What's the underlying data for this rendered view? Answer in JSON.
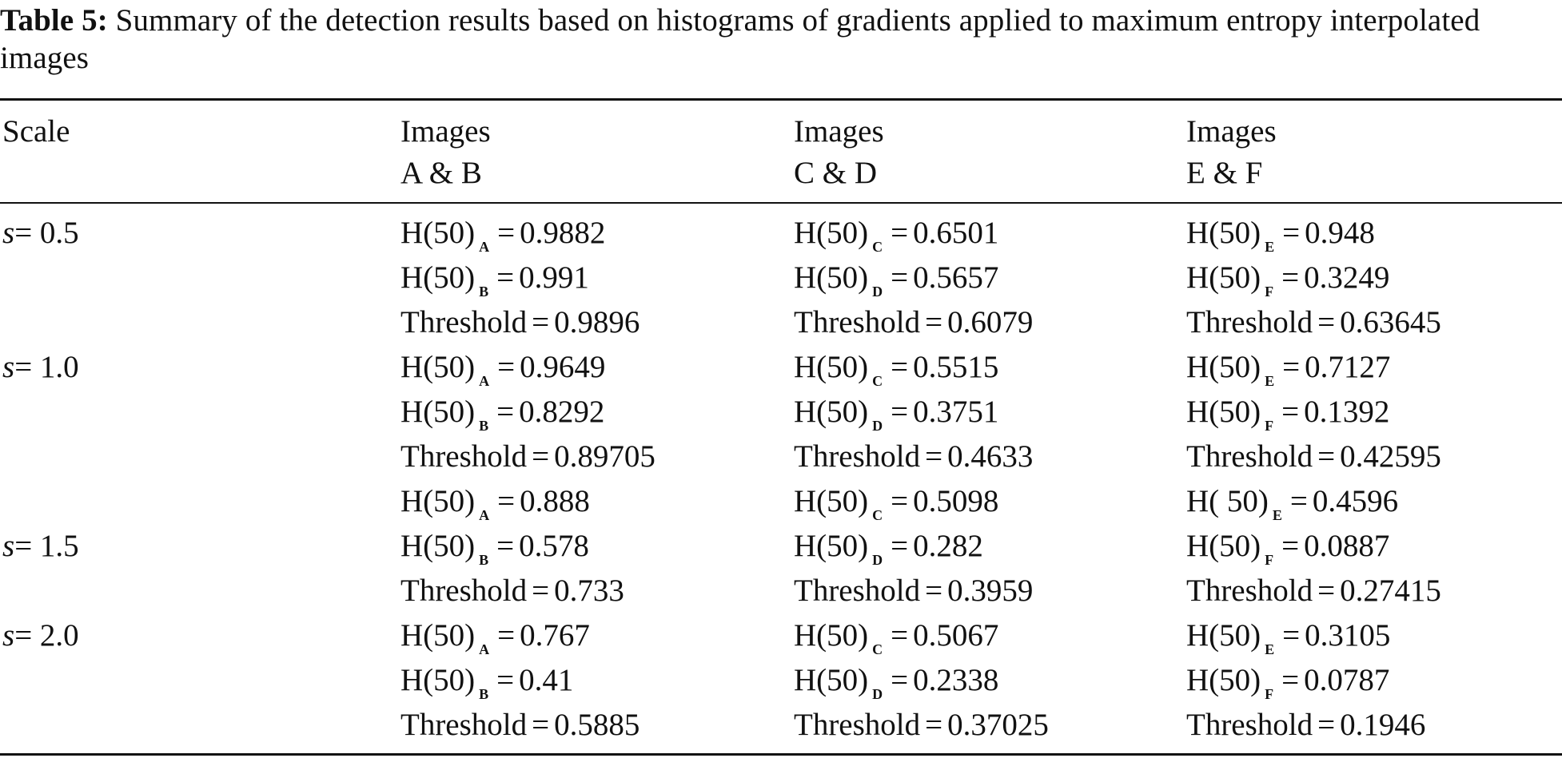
{
  "caption": {
    "label": "Table 5:",
    "text": "Summary of the detection results based on histograms of gradients applied to maximum entropy interpolated images"
  },
  "header": {
    "scale": "Scale",
    "columns": [
      {
        "line1": "Images",
        "line2": "A & B"
      },
      {
        "line1": "Images",
        "line2": "C & D"
      },
      {
        "line1": "Images",
        "line2": "E & F"
      }
    ]
  },
  "rows": [
    {
      "scale_var": "s",
      "scale_value": "= 0.5",
      "cells": [
        [
          {
            "name": "H(50)",
            "sub": "A",
            "value": "0.9882"
          },
          {
            "name": "H(50)",
            "sub": "B",
            "value": "0.991"
          },
          {
            "name": "Threshold",
            "sub": "",
            "value": "0.9896"
          }
        ],
        [
          {
            "name": "H(50)",
            "sub": "C",
            "value": "0.6501"
          },
          {
            "name": "H(50)",
            "sub": "D",
            "value": "0.5657"
          },
          {
            "name": "Threshold",
            "sub": "",
            "value": "0.6079"
          }
        ],
        [
          {
            "name": "H(50)",
            "sub": "E",
            "value": "0.948"
          },
          {
            "name": "H(50)",
            "sub": "F",
            "value": "0.3249"
          },
          {
            "name": "Threshold",
            "sub": "",
            "value": "0.63645"
          }
        ]
      ]
    },
    {
      "scale_var": "s",
      "scale_value": "= 1.0",
      "cells": [
        [
          {
            "name": "H(50)",
            "sub": "A",
            "value": "0.9649"
          },
          {
            "name": "H(50)",
            "sub": "B",
            "value": "0.8292"
          },
          {
            "name": "Threshold",
            "sub": "",
            "value": "0.89705"
          }
        ],
        [
          {
            "name": "H(50)",
            "sub": "C",
            "value": "0.5515"
          },
          {
            "name": "H(50)",
            "sub": "D",
            "value": "0.3751"
          },
          {
            "name": "Threshold",
            "sub": "",
            "value": "0.4633"
          }
        ],
        [
          {
            "name": "H(50)",
            "sub": "E",
            "value": "0.7127"
          },
          {
            "name": "H(50)",
            "sub": "F",
            "value": "0.1392"
          },
          {
            "name": "Threshold",
            "sub": "",
            "value": "0.42595"
          }
        ]
      ]
    },
    {
      "scale_var": "s",
      "scale_value": "= 1.5",
      "cells": [
        [
          {
            "name": "H(50)",
            "sub": "A",
            "value": "0.888"
          },
          {
            "name": "H(50)",
            "sub": "B",
            "value": "0.578"
          },
          {
            "name": "Threshold",
            "sub": "",
            "value": "0.733"
          }
        ],
        [
          {
            "name": "H(50)",
            "sub": "C",
            "value": "0.5098"
          },
          {
            "name": "H(50)",
            "sub": "D",
            "value": "0.282"
          },
          {
            "name": "Threshold",
            "sub": "",
            "value": "0.3959"
          }
        ],
        [
          {
            "name": "H( 50)",
            "sub": "E",
            "value": "0.4596"
          },
          {
            "name": "H(50)",
            "sub": "F",
            "value": "0.0887"
          },
          {
            "name": "Threshold",
            "sub": "",
            "value": "0.27415"
          }
        ]
      ]
    },
    {
      "scale_var": "s",
      "scale_value": "= 2.0",
      "cells": [
        [
          {
            "name": "H(50)",
            "sub": "A",
            "value": "0.767"
          },
          {
            "name": "H(50)",
            "sub": "B",
            "value": "0.41"
          },
          {
            "name": "Threshold",
            "sub": "",
            "value": "0.5885"
          }
        ],
        [
          {
            "name": "H(50)",
            "sub": "C",
            "value": "0.5067"
          },
          {
            "name": "H(50)",
            "sub": "D",
            "value": "0.2338"
          },
          {
            "name": "Threshold",
            "sub": "",
            "value": "0.37025"
          }
        ],
        [
          {
            "name": "H(50)",
            "sub": "E",
            "value": "0.3105"
          },
          {
            "name": "H(50)",
            "sub": "F",
            "value": "0.0787"
          },
          {
            "name": "Threshold",
            "sub": "",
            "value": "0.1946"
          }
        ]
      ]
    }
  ]
}
